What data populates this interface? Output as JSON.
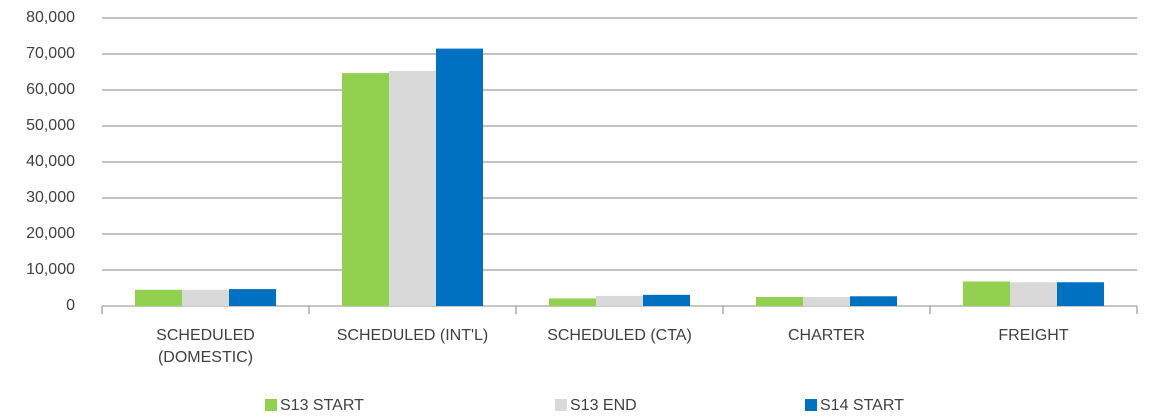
{
  "chart_data": {
    "type": "bar",
    "categories": [
      "SCHEDULED\n(DOMESTIC)",
      "SCHEDULED (INT'L)",
      "SCHEDULED (CTA)",
      "CHARTER",
      "FREIGHT"
    ],
    "series": [
      {
        "name": "S13 START",
        "color": "#92d050",
        "values": [
          4500,
          64700,
          2100,
          2500,
          6800
        ]
      },
      {
        "name": "S13 END",
        "color": "#d9d9d9",
        "values": [
          4500,
          65300,
          2800,
          2500,
          6600
        ]
      },
      {
        "name": "S14 START",
        "color": "#0070c0",
        "values": [
          4700,
          71500,
          3100,
          2700,
          6600
        ]
      }
    ],
    "ylim": [
      0,
      80000
    ],
    "yticks": [
      0,
      {
        "value": 10000,
        "label": "10,000"
      },
      {
        "value": 20000,
        "label": "20,000"
      },
      {
        "value": 30000,
        "label": "30,000"
      },
      {
        "value": 40000,
        "label": "40,000"
      },
      {
        "value": 50000,
        "label": "50,000"
      },
      {
        "value": 60000,
        "label": "60,000"
      },
      {
        "value": 70000,
        "label": "70,000"
      },
      {
        "value": 80000,
        "label": "80,000"
      }
    ],
    "grid": true,
    "legend": "bottom"
  }
}
